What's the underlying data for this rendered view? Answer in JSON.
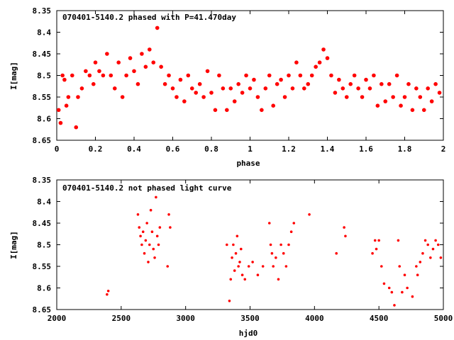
{
  "chart_data": [
    {
      "type": "scatter",
      "title": "070401-5140.2 phased with P=41.470day",
      "xlabel": "phase",
      "ylabel": "I[mag]",
      "xlim": [
        0,
        2
      ],
      "ylim": [
        8.35,
        8.65
      ],
      "y_inverted": true,
      "xticks": [
        "0",
        "0.2",
        "0.4",
        "0.6",
        "0.8",
        "1",
        "1.2",
        "1.4",
        "1.6",
        "1.8",
        "2"
      ],
      "yticks": [
        "8.35",
        "8.4",
        "8.45",
        "8.5",
        "8.55",
        "8.6",
        "8.65"
      ],
      "marker_color": "#ff0000",
      "grid": false,
      "series": [
        {
          "values": [
            [
              0.01,
              8.58
            ],
            [
              0.02,
              8.61
            ],
            [
              0.03,
              8.5
            ],
            [
              0.04,
              8.51
            ],
            [
              0.05,
              8.57
            ],
            [
              0.06,
              8.55
            ],
            [
              0.08,
              8.5
            ],
            [
              0.1,
              8.62
            ],
            [
              0.11,
              8.55
            ],
            [
              0.13,
              8.53
            ],
            [
              0.15,
              8.49
            ],
            [
              0.17,
              8.5
            ],
            [
              0.19,
              8.52
            ],
            [
              0.2,
              8.47
            ],
            [
              0.22,
              8.49
            ],
            [
              0.24,
              8.5
            ],
            [
              0.26,
              8.45
            ],
            [
              0.28,
              8.5
            ],
            [
              0.3,
              8.53
            ],
            [
              0.32,
              8.47
            ],
            [
              0.34,
              8.55
            ],
            [
              0.36,
              8.5
            ],
            [
              0.38,
              8.46
            ],
            [
              0.4,
              8.49
            ],
            [
              0.42,
              8.52
            ],
            [
              0.44,
              8.45
            ],
            [
              0.46,
              8.48
            ],
            [
              0.48,
              8.44
            ],
            [
              0.5,
              8.47
            ],
            [
              0.52,
              8.39
            ],
            [
              0.54,
              8.48
            ],
            [
              0.56,
              8.52
            ],
            [
              0.58,
              8.5
            ],
            [
              0.6,
              8.53
            ],
            [
              0.62,
              8.55
            ],
            [
              0.64,
              8.51
            ],
            [
              0.66,
              8.56
            ],
            [
              0.68,
              8.5
            ],
            [
              0.7,
              8.53
            ],
            [
              0.72,
              8.54
            ],
            [
              0.74,
              8.52
            ],
            [
              0.76,
              8.55
            ],
            [
              0.78,
              8.49
            ],
            [
              0.8,
              8.54
            ],
            [
              0.82,
              8.58
            ],
            [
              0.84,
              8.5
            ],
            [
              0.86,
              8.53
            ],
            [
              0.88,
              8.58
            ],
            [
              0.9,
              8.53
            ],
            [
              0.92,
              8.56
            ],
            [
              0.94,
              8.52
            ],
            [
              0.96,
              8.54
            ],
            [
              0.98,
              8.5
            ],
            [
              1.0,
              8.53
            ],
            [
              1.02,
              8.51
            ],
            [
              1.04,
              8.55
            ],
            [
              1.06,
              8.58
            ],
            [
              1.08,
              8.53
            ],
            [
              1.1,
              8.5
            ],
            [
              1.12,
              8.57
            ],
            [
              1.14,
              8.52
            ],
            [
              1.16,
              8.51
            ],
            [
              1.18,
              8.55
            ],
            [
              1.2,
              8.5
            ],
            [
              1.22,
              8.53
            ],
            [
              1.24,
              8.47
            ],
            [
              1.26,
              8.5
            ],
            [
              1.28,
              8.53
            ],
            [
              1.3,
              8.52
            ],
            [
              1.32,
              8.5
            ],
            [
              1.34,
              8.48
            ],
            [
              1.36,
              8.47
            ],
            [
              1.38,
              8.44
            ],
            [
              1.4,
              8.46
            ],
            [
              1.42,
              8.5
            ],
            [
              1.44,
              8.54
            ],
            [
              1.46,
              8.51
            ],
            [
              1.48,
              8.53
            ],
            [
              1.5,
              8.55
            ],
            [
              1.52,
              8.52
            ],
            [
              1.54,
              8.5
            ],
            [
              1.56,
              8.53
            ],
            [
              1.58,
              8.55
            ],
            [
              1.6,
              8.51
            ],
            [
              1.62,
              8.53
            ],
            [
              1.64,
              8.5
            ],
            [
              1.66,
              8.57
            ],
            [
              1.68,
              8.52
            ],
            [
              1.7,
              8.56
            ],
            [
              1.72,
              8.52
            ],
            [
              1.74,
              8.55
            ],
            [
              1.76,
              8.5
            ],
            [
              1.78,
              8.57
            ],
            [
              1.8,
              8.55
            ],
            [
              1.82,
              8.52
            ],
            [
              1.84,
              8.58
            ],
            [
              1.86,
              8.53
            ],
            [
              1.88,
              8.55
            ],
            [
              1.9,
              8.58
            ],
            [
              1.92,
              8.53
            ],
            [
              1.94,
              8.56
            ],
            [
              1.96,
              8.52
            ],
            [
              1.98,
              8.54
            ]
          ]
        }
      ]
    },
    {
      "type": "scatter",
      "title": "070401-5140.2 not phased light curve",
      "xlabel": "hjd0",
      "ylabel": "I[mag]",
      "xlim": [
        2000,
        5000
      ],
      "ylim": [
        8.35,
        8.65
      ],
      "y_inverted": true,
      "xticks": [
        "2000",
        "2500",
        "3000",
        "3500",
        "4000",
        "4500",
        "5000"
      ],
      "yticks": [
        "8.35",
        "8.4",
        "8.45",
        "8.5",
        "8.55",
        "8.6",
        "8.65"
      ],
      "marker_color": "#ff0000",
      "grid": false,
      "series": [
        {
          "values": [
            [
              2390,
              8.615
            ],
            [
              2400,
              8.607
            ],
            [
              2630,
              8.43
            ],
            [
              2640,
              8.46
            ],
            [
              2650,
              8.48
            ],
            [
              2660,
              8.5
            ],
            [
              2670,
              8.47
            ],
            [
              2680,
              8.52
            ],
            [
              2690,
              8.49
            ],
            [
              2700,
              8.45
            ],
            [
              2710,
              8.54
            ],
            [
              2720,
              8.5
            ],
            [
              2730,
              8.42
            ],
            [
              2740,
              8.47
            ],
            [
              2750,
              8.51
            ],
            [
              2760,
              8.53
            ],
            [
              2770,
              8.39
            ],
            [
              2780,
              8.48
            ],
            [
              2790,
              8.5
            ],
            [
              2800,
              8.46
            ],
            [
              2860,
              8.55
            ],
            [
              2870,
              8.43
            ],
            [
              2880,
              8.46
            ],
            [
              3320,
              8.5
            ],
            [
              3340,
              8.63
            ],
            [
              3350,
              8.58
            ],
            [
              3360,
              8.53
            ],
            [
              3370,
              8.5
            ],
            [
              3380,
              8.56
            ],
            [
              3390,
              8.52
            ],
            [
              3400,
              8.48
            ],
            [
              3410,
              8.55
            ],
            [
              3420,
              8.54
            ],
            [
              3430,
              8.51
            ],
            [
              3440,
              8.57
            ],
            [
              3460,
              8.58
            ],
            [
              3490,
              8.55
            ],
            [
              3520,
              8.54
            ],
            [
              3560,
              8.57
            ],
            [
              3600,
              8.55
            ],
            [
              3650,
              8.45
            ],
            [
              3660,
              8.5
            ],
            [
              3670,
              8.52
            ],
            [
              3680,
              8.55
            ],
            [
              3700,
              8.53
            ],
            [
              3720,
              8.58
            ],
            [
              3740,
              8.5
            ],
            [
              3760,
              8.52
            ],
            [
              3780,
              8.55
            ],
            [
              3800,
              8.5
            ],
            [
              3820,
              8.47
            ],
            [
              3840,
              8.45
            ],
            [
              3960,
              8.43
            ],
            [
              4170,
              8.52
            ],
            [
              4230,
              8.46
            ],
            [
              4240,
              8.48
            ],
            [
              4450,
              8.52
            ],
            [
              4470,
              8.49
            ],
            [
              4480,
              8.51
            ],
            [
              4500,
              8.49
            ],
            [
              4520,
              8.55
            ],
            [
              4540,
              8.59
            ],
            [
              4580,
              8.6
            ],
            [
              4600,
              8.61
            ],
            [
              4620,
              8.64
            ],
            [
              4650,
              8.49
            ],
            [
              4660,
              8.55
            ],
            [
              4680,
              8.61
            ],
            [
              4700,
              8.57
            ],
            [
              4720,
              8.6
            ],
            [
              4760,
              8.62
            ],
            [
              4790,
              8.55
            ],
            [
              4800,
              8.57
            ],
            [
              4820,
              8.54
            ],
            [
              4840,
              8.52
            ],
            [
              4860,
              8.49
            ],
            [
              4880,
              8.5
            ],
            [
              4900,
              8.53
            ],
            [
              4920,
              8.51
            ],
            [
              4940,
              8.49
            ],
            [
              4960,
              8.5
            ],
            [
              4980,
              8.53
            ]
          ]
        }
      ]
    }
  ]
}
